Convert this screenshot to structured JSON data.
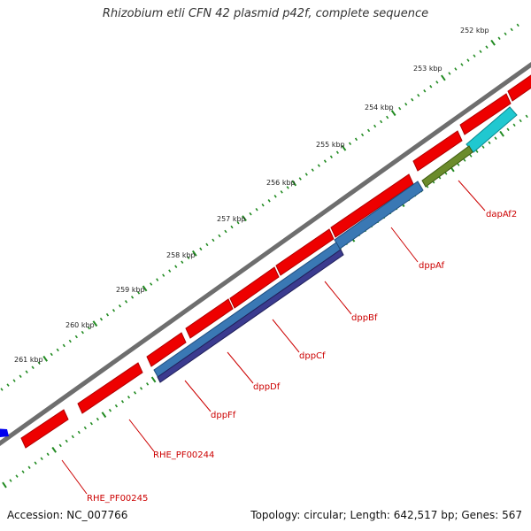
{
  "title": "Rhizobium etli CFN 42 plasmid p42f, complete sequence",
  "footer": {
    "accession": "Accession: NC_007766",
    "summary": "Topology: circular; Length: 642,517 bp; Genes: 567"
  },
  "scale": {
    "unit": "kbp",
    "ticks": [
      "252 kbp",
      "253 kbp",
      "254 kbp",
      "255 kbp",
      "256 kbp",
      "257 kbp",
      "258 kbp",
      "259 kbp",
      "260 kbp",
      "261 kbp"
    ]
  },
  "colors": {
    "backbone": "#808080",
    "cds_forward": "#ee0000",
    "gene_ticks": "#228b22",
    "label": "#cc0000",
    "feature_blue": "#3a78b4",
    "feature_navy": "#3b3b8f",
    "feature_olive": "#6b8b2b",
    "feature_cyan": "#20c8d0",
    "feature_darkblue": "#0000ee"
  },
  "genes": [
    {
      "name": "dapAf2"
    },
    {
      "name": "dppAf"
    },
    {
      "name": "dppBf"
    },
    {
      "name": "dppCf"
    },
    {
      "name": "dppDf"
    },
    {
      "name": "dppFf"
    },
    {
      "name": "RHE_PF00244"
    },
    {
      "name": "RHE_PF00245"
    }
  ]
}
